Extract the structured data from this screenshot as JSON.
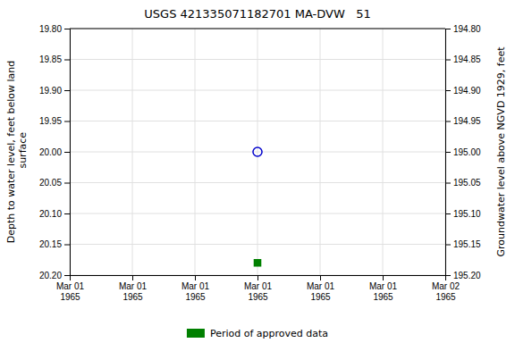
{
  "chart_data": {
    "type": "scatter",
    "title": "USGS 421335071182701 MA-DVW   51",
    "y_label": "Depth to water level, feet below land\n surface",
    "y2_label": "Groundwater level above NGVD 1929, feet",
    "categories": [
      "Mar 01\n1965",
      "Mar 01\n1965",
      "Mar 01\n1965",
      "Mar 01\n1965",
      "Mar 01\n1965",
      "Mar 01\n1965",
      "Mar 02\n1965"
    ],
    "series": [
      {
        "color": "#0000cc",
        "marker": "circle-open",
        "values": [
          null,
          null,
          null,
          20.0,
          null,
          null,
          null
        ]
      },
      {
        "name": "Period of approved data",
        "color": "#008000",
        "marker": "square",
        "values": [
          null,
          null,
          null,
          20.18,
          null,
          null,
          null
        ]
      }
    ],
    "ylim": [
      20.2,
      19.8
    ],
    "yticks": [
      {
        "value": 19.8,
        "label": "19.80"
      },
      {
        "value": 19.85,
        "label": "19.85"
      },
      {
        "value": 19.9,
        "label": "19.90"
      },
      {
        "value": 19.95,
        "label": "19.95"
      },
      {
        "value": 20.0,
        "label": "20.00"
      },
      {
        "value": 20.05,
        "label": "20.05"
      },
      {
        "value": 20.1,
        "label": "20.10"
      },
      {
        "value": 20.15,
        "label": "20.15"
      },
      {
        "value": 20.2,
        "label": "20.20"
      }
    ],
    "y2lim": [
      195.2,
      194.8
    ],
    "y2ticks": [
      {
        "value": 195.2,
        "label": "195.20"
      },
      {
        "value": 195.15,
        "label": "195.15"
      },
      {
        "value": 195.1,
        "label": "195.10"
      },
      {
        "value": 195.05,
        "label": "195.05"
      },
      {
        "value": 195.0,
        "label": "195.00"
      },
      {
        "value": 194.95,
        "label": "194.95"
      },
      {
        "value": 194.9,
        "label": "194.90"
      },
      {
        "value": 194.85,
        "label": "194.85"
      },
      {
        "value": 194.8,
        "label": "194.80"
      }
    ],
    "grid": true,
    "legend": "bottom"
  }
}
